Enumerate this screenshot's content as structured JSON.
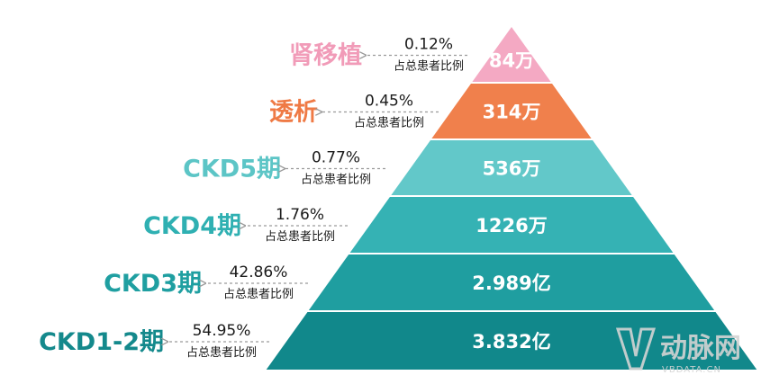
{
  "diagram": {
    "tiers": [
      {
        "stage": "肾移植",
        "value": "84万",
        "percent": "0.12%",
        "caption": "占总患者比例",
        "color": "#f4a9c3",
        "label_color": "#f19bb8"
      },
      {
        "stage": "透析",
        "value": "314万",
        "percent": "0.45%",
        "caption": "占总患者比例",
        "color": "#f0804c",
        "label_color": "#ef7a45"
      },
      {
        "stage": "CKD5期",
        "value": "536万",
        "percent": "0.77%",
        "caption": "占总患者比例",
        "color": "#62c8c9",
        "label_color": "#5cc5c6"
      },
      {
        "stage": "CKD4期",
        "value": "1226万",
        "percent": "1.76%",
        "caption": "占总患者比例",
        "color": "#35b2b4",
        "label_color": "#2fb0b2"
      },
      {
        "stage": "CKD3期",
        "value": "2.989亿",
        "percent": "42.86%",
        "caption": "占总患者比例",
        "color": "#1f9ea0",
        "label_color": "#1f9fa1"
      },
      {
        "stage": "CKD1-2期",
        "value": "3.832亿",
        "percent": "54.95%",
        "caption": "占总患者比例",
        "color": "#11888b",
        "label_color": "#14898c"
      }
    ]
  },
  "watermark": {
    "text": "动脉网",
    "domain": "VBDATA.CN",
    "color": "#cfcfcf"
  }
}
